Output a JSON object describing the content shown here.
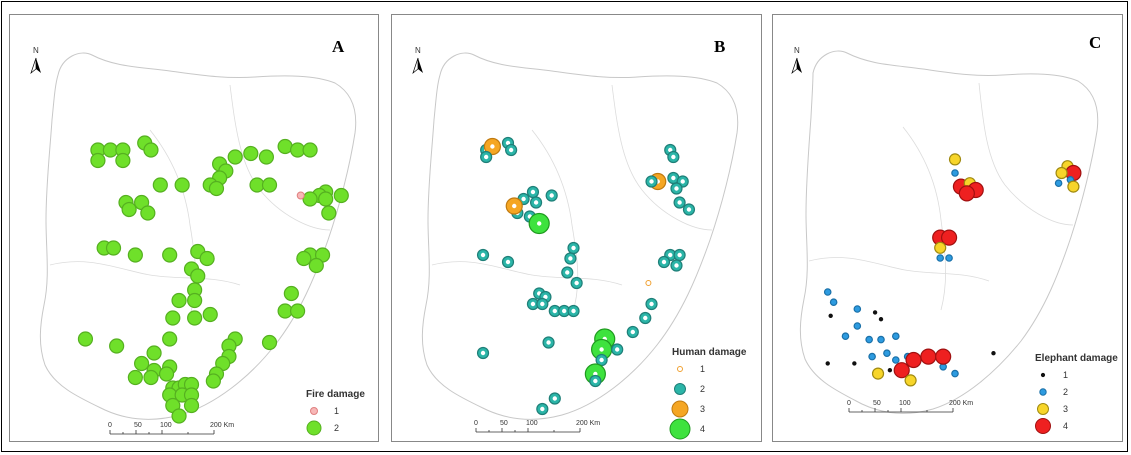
{
  "panels": [
    {
      "id": "A",
      "letter": "A",
      "legend_title": "Fire damage",
      "legend": [
        {
          "label": "1",
          "color": "#f7b7b7",
          "stroke": "#e08080",
          "r": 3.5
        },
        {
          "label": "2",
          "color": "#6fe02a",
          "stroke": "#55b020",
          "r": 7
        }
      ],
      "scale_labels": [
        "0",
        "50",
        "100",
        "200 Km"
      ],
      "north": "N"
    },
    {
      "id": "B",
      "letter": "B",
      "legend_title": "Human damage",
      "legend": [
        {
          "label": "1",
          "color": "#ffffff",
          "stroke": "#f0a030",
          "r": 2.5
        },
        {
          "label": "2",
          "color": "#2bb5a8",
          "stroke": "#1f7f78",
          "r": 5.5
        },
        {
          "label": "3",
          "color": "#f5a623",
          "stroke": "#c07a10",
          "r": 8
        },
        {
          "label": "4",
          "color": "#3ee23e",
          "stroke": "#1f9a1f",
          "r": 10
        }
      ],
      "scale_labels": [
        "0",
        "50",
        "100",
        "200 Km"
      ],
      "north": "N"
    },
    {
      "id": "C",
      "letter": "C",
      "legend_title": "Elephant damage",
      "legend": [
        {
          "label": "1",
          "color": "#111111",
          "stroke": "#111111",
          "r": 1.6
        },
        {
          "label": "2",
          "color": "#2d9be0",
          "stroke": "#1a70a8",
          "r": 3.2
        },
        {
          "label": "3",
          "color": "#f7d52a",
          "stroke": "#a08a10",
          "r": 5.5
        },
        {
          "label": "4",
          "color": "#ee2020",
          "stroke": "#a01010",
          "r": 7.5
        }
      ],
      "scale_labels": [
        "0",
        "50",
        "100",
        "200 Km"
      ],
      "north": "N"
    }
  ],
  "points": {
    "A": [
      [
        0.16,
        0.22,
        2
      ],
      [
        0.2,
        0.22,
        2
      ],
      [
        0.24,
        0.22,
        2
      ],
      [
        0.31,
        0.2,
        2
      ],
      [
        0.16,
        0.25,
        2
      ],
      [
        0.24,
        0.25,
        2
      ],
      [
        0.33,
        0.22,
        2
      ],
      [
        0.55,
        0.26,
        2
      ],
      [
        0.6,
        0.24,
        2
      ],
      [
        0.65,
        0.23,
        2
      ],
      [
        0.57,
        0.28,
        2
      ],
      [
        0.55,
        0.3,
        2
      ],
      [
        0.52,
        0.32,
        2
      ],
      [
        0.54,
        0.33,
        2
      ],
      [
        0.7,
        0.24,
        2
      ],
      [
        0.76,
        0.21,
        2
      ],
      [
        0.8,
        0.22,
        2
      ],
      [
        0.84,
        0.22,
        2
      ],
      [
        0.67,
        0.32,
        2
      ],
      [
        0.71,
        0.32,
        2
      ],
      [
        0.89,
        0.34,
        2
      ],
      [
        0.87,
        0.35,
        2
      ],
      [
        0.84,
        0.36,
        2
      ],
      [
        0.81,
        0.35,
        1
      ],
      [
        0.89,
        0.36,
        2
      ],
      [
        0.94,
        0.35,
        2
      ],
      [
        0.9,
        0.4,
        2
      ],
      [
        0.36,
        0.32,
        2
      ],
      [
        0.43,
        0.32,
        2
      ],
      [
        0.25,
        0.37,
        2
      ],
      [
        0.3,
        0.37,
        2
      ],
      [
        0.26,
        0.39,
        2
      ],
      [
        0.32,
        0.4,
        2
      ],
      [
        0.18,
        0.5,
        2
      ],
      [
        0.21,
        0.5,
        2
      ],
      [
        0.28,
        0.52,
        2
      ],
      [
        0.39,
        0.52,
        2
      ],
      [
        0.48,
        0.51,
        2
      ],
      [
        0.51,
        0.53,
        2
      ],
      [
        0.46,
        0.56,
        2
      ],
      [
        0.48,
        0.58,
        2
      ],
      [
        0.47,
        0.62,
        2
      ],
      [
        0.42,
        0.65,
        2
      ],
      [
        0.47,
        0.65,
        2
      ],
      [
        0.4,
        0.7,
        2
      ],
      [
        0.47,
        0.7,
        2
      ],
      [
        0.52,
        0.69,
        2
      ],
      [
        0.84,
        0.52,
        2
      ],
      [
        0.88,
        0.52,
        2
      ],
      [
        0.86,
        0.55,
        2
      ],
      [
        0.82,
        0.53,
        2
      ],
      [
        0.78,
        0.63,
        2
      ],
      [
        0.76,
        0.68,
        2
      ],
      [
        0.8,
        0.68,
        2
      ],
      [
        0.12,
        0.76,
        2
      ],
      [
        0.22,
        0.78,
        2
      ],
      [
        0.39,
        0.76,
        2
      ],
      [
        0.34,
        0.8,
        2
      ],
      [
        0.6,
        0.76,
        2
      ],
      [
        0.58,
        0.78,
        2
      ],
      [
        0.58,
        0.81,
        2
      ],
      [
        0.56,
        0.83,
        2
      ],
      [
        0.71,
        0.77,
        2
      ],
      [
        0.3,
        0.83,
        2
      ],
      [
        0.34,
        0.85,
        2
      ],
      [
        0.39,
        0.84,
        2
      ],
      [
        0.28,
        0.87,
        2
      ],
      [
        0.33,
        0.87,
        2
      ],
      [
        0.38,
        0.86,
        2
      ],
      [
        0.54,
        0.86,
        2
      ],
      [
        0.53,
        0.88,
        2
      ],
      [
        0.4,
        0.9,
        2
      ],
      [
        0.42,
        0.9,
        2
      ],
      [
        0.44,
        0.89,
        2
      ],
      [
        0.46,
        0.89,
        2
      ],
      [
        0.39,
        0.92,
        2
      ],
      [
        0.43,
        0.92,
        2
      ],
      [
        0.46,
        0.92,
        2
      ],
      [
        0.4,
        0.95,
        2
      ],
      [
        0.46,
        0.95,
        2
      ],
      [
        0.42,
        0.98,
        2
      ]
    ],
    "B": [
      [
        0.18,
        0.22,
        2
      ],
      [
        0.2,
        0.21,
        3
      ],
      [
        0.18,
        0.24,
        2
      ],
      [
        0.25,
        0.2,
        2
      ],
      [
        0.26,
        0.22,
        2
      ],
      [
        0.33,
        0.34,
        2
      ],
      [
        0.3,
        0.36,
        2
      ],
      [
        0.34,
        0.37,
        2
      ],
      [
        0.28,
        0.4,
        2
      ],
      [
        0.32,
        0.41,
        2
      ],
      [
        0.39,
        0.35,
        2
      ],
      [
        0.27,
        0.38,
        3
      ],
      [
        0.35,
        0.43,
        4
      ],
      [
        0.17,
        0.52,
        2
      ],
      [
        0.25,
        0.54,
        2
      ],
      [
        0.77,
        0.22,
        2
      ],
      [
        0.78,
        0.24,
        2
      ],
      [
        0.78,
        0.3,
        2
      ],
      [
        0.81,
        0.31,
        2
      ],
      [
        0.79,
        0.33,
        2
      ],
      [
        0.73,
        0.31,
        3
      ],
      [
        0.71,
        0.31,
        2
      ],
      [
        0.8,
        0.37,
        2
      ],
      [
        0.83,
        0.39,
        2
      ],
      [
        0.77,
        0.52,
        2
      ],
      [
        0.8,
        0.52,
        2
      ],
      [
        0.75,
        0.54,
        2
      ],
      [
        0.79,
        0.55,
        2
      ],
      [
        0.46,
        0.5,
        2
      ],
      [
        0.45,
        0.53,
        2
      ],
      [
        0.44,
        0.57,
        2
      ],
      [
        0.47,
        0.6,
        2
      ],
      [
        0.35,
        0.63,
        2
      ],
      [
        0.37,
        0.64,
        2
      ],
      [
        0.33,
        0.66,
        2
      ],
      [
        0.36,
        0.66,
        2
      ],
      [
        0.4,
        0.68,
        2
      ],
      [
        0.43,
        0.68,
        2
      ],
      [
        0.46,
        0.68,
        2
      ],
      [
        0.7,
        0.6,
        1
      ],
      [
        0.71,
        0.66,
        2
      ],
      [
        0.69,
        0.7,
        2
      ],
      [
        0.65,
        0.74,
        2
      ],
      [
        0.56,
        0.76,
        4
      ],
      [
        0.55,
        0.79,
        4
      ],
      [
        0.55,
        0.82,
        2
      ],
      [
        0.53,
        0.86,
        4
      ],
      [
        0.53,
        0.88,
        2
      ],
      [
        0.38,
        0.77,
        2
      ],
      [
        0.6,
        0.79,
        2
      ],
      [
        0.17,
        0.8,
        2
      ],
      [
        0.4,
        0.93,
        2
      ],
      [
        0.36,
        0.96,
        2
      ]
    ],
    "C": [
      [
        0.5,
        0.26,
        3
      ],
      [
        0.5,
        0.3,
        2
      ],
      [
        0.52,
        0.34,
        4
      ],
      [
        0.55,
        0.33,
        3
      ],
      [
        0.57,
        0.35,
        4
      ],
      [
        0.54,
        0.36,
        4
      ],
      [
        0.45,
        0.49,
        4
      ],
      [
        0.48,
        0.49,
        4
      ],
      [
        0.45,
        0.52,
        3
      ],
      [
        0.45,
        0.55,
        2
      ],
      [
        0.48,
        0.55,
        2
      ],
      [
        0.88,
        0.28,
        3
      ],
      [
        0.9,
        0.3,
        4
      ],
      [
        0.86,
        0.3,
        3
      ],
      [
        0.89,
        0.32,
        2
      ],
      [
        0.85,
        0.33,
        2
      ],
      [
        0.9,
        0.34,
        3
      ],
      [
        0.07,
        0.65,
        2
      ],
      [
        0.09,
        0.68,
        2
      ],
      [
        0.08,
        0.72,
        1
      ],
      [
        0.17,
        0.7,
        2
      ],
      [
        0.23,
        0.71,
        1
      ],
      [
        0.17,
        0.75,
        2
      ],
      [
        0.13,
        0.78,
        2
      ],
      [
        0.21,
        0.79,
        2
      ],
      [
        0.25,
        0.79,
        2
      ],
      [
        0.3,
        0.78,
        2
      ],
      [
        0.27,
        0.83,
        2
      ],
      [
        0.22,
        0.84,
        2
      ],
      [
        0.34,
        0.84,
        2
      ],
      [
        0.3,
        0.85,
        2
      ],
      [
        0.36,
        0.85,
        4
      ],
      [
        0.41,
        0.84,
        4
      ],
      [
        0.32,
        0.88,
        4
      ],
      [
        0.24,
        0.89,
        3
      ],
      [
        0.35,
        0.91,
        3
      ],
      [
        0.46,
        0.87,
        2
      ],
      [
        0.5,
        0.89,
        2
      ],
      [
        0.25,
        0.73,
        1
      ],
      [
        0.16,
        0.86,
        1
      ],
      [
        0.07,
        0.86,
        1
      ],
      [
        0.28,
        0.88,
        1
      ],
      [
        0.63,
        0.83,
        1
      ],
      [
        0.46,
        0.84,
        4
      ]
    ]
  }
}
